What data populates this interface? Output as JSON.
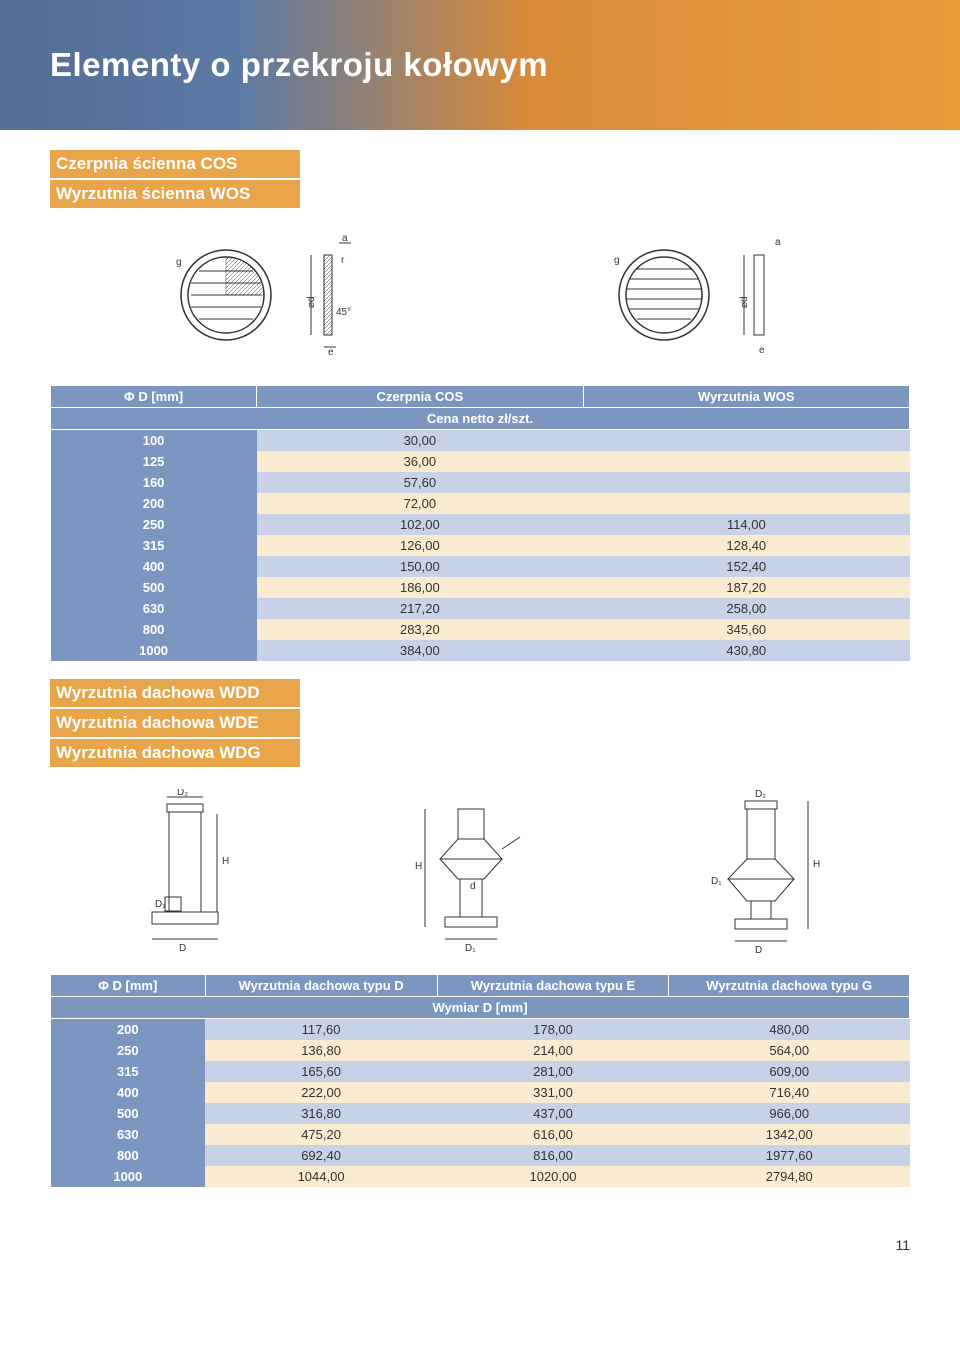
{
  "page_title": "Elementy o przekroju kołowym",
  "page_number": "11",
  "section1": {
    "titles": [
      "Czerpnia ścienna COS",
      "Wyrzutnia ścienna WOS"
    ],
    "table": {
      "columns": [
        "Φ D [mm]",
        "Czerpnia COS",
        "Wyrzutnia WOS"
      ],
      "subheader": "Cena netto zł/szt.",
      "rows": [
        {
          "d": "100",
          "cos": "30,00",
          "wos": ""
        },
        {
          "d": "125",
          "cos": "36,00",
          "wos": ""
        },
        {
          "d": "160",
          "cos": "57,60",
          "wos": ""
        },
        {
          "d": "200",
          "cos": "72,00",
          "wos": ""
        },
        {
          "d": "250",
          "cos": "102,00",
          "wos": "114,00"
        },
        {
          "d": "315",
          "cos": "126,00",
          "wos": "128,40"
        },
        {
          "d": "400",
          "cos": "150,00",
          "wos": "152,40"
        },
        {
          "d": "500",
          "cos": "186,00",
          "wos": "187,20"
        },
        {
          "d": "630",
          "cos": "217,20",
          "wos": "258,00"
        },
        {
          "d": "800",
          "cos": "283,20",
          "wos": "345,60"
        },
        {
          "d": "1000",
          "cos": "384,00",
          "wos": "430,80"
        }
      ],
      "col_widths": [
        "24%",
        "38%",
        "38%"
      ],
      "band_colors": {
        "blue": "#c7d2e6",
        "cream": "#faebd0",
        "header": "#7d96c0"
      }
    }
  },
  "section2": {
    "titles": [
      "Wyrzutnia dachowa WDD",
      "Wyrzutnia dachowa WDE",
      "Wyrzutnia dachowa WDG"
    ],
    "diagram_labels": {
      "d": "D",
      "d1": "D₁",
      "d2": "D₂",
      "h": "H",
      "small_d": "d"
    },
    "table": {
      "columns": [
        "Φ D [mm]",
        "Wyrzutnia dachowa typu D",
        "Wyrzutnia dachowa typu E",
        "Wyrzutnia dachowa typu G"
      ],
      "subheader": "Wymiar D [mm]",
      "rows": [
        {
          "d": "200",
          "a": "117,60",
          "b": "178,00",
          "c": "480,00"
        },
        {
          "d": "250",
          "a": "136,80",
          "b": "214,00",
          "c": "564,00"
        },
        {
          "d": "315",
          "a": "165,60",
          "b": "281,00",
          "c": "609,00"
        },
        {
          "d": "400",
          "a": "222,00",
          "b": "331,00",
          "c": "716,40"
        },
        {
          "d": "500",
          "a": "316,80",
          "b": "437,00",
          "c": "966,00"
        },
        {
          "d": "630",
          "a": "475,20",
          "b": "616,00",
          "c": "1342,00"
        },
        {
          "d": "800",
          "a": "692,40",
          "b": "816,00",
          "c": "1977,60"
        },
        {
          "d": "1000",
          "a": "1044,00",
          "b": "1020,00",
          "c": "2794,80"
        }
      ],
      "col_widths": [
        "18%",
        "27%",
        "27%",
        "28%"
      ]
    }
  },
  "diagrams_section1": {
    "labels": {
      "g": "g",
      "a": "a",
      "e": "e",
      "r": "r",
      "phi_d": "⌀d",
      "angle": "45°"
    }
  }
}
